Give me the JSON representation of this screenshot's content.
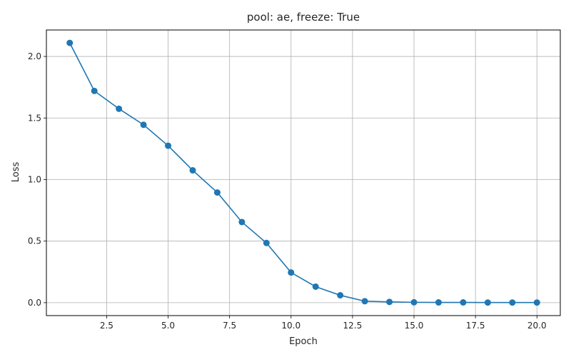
{
  "chart_data": {
    "type": "line",
    "title": "pool: ae, freeze: True",
    "xlabel": "Epoch",
    "ylabel": "Loss",
    "xlim": [
      0.05,
      20.95
    ],
    "ylim": [
      -0.105,
      2.215
    ],
    "xticks": [
      2.5,
      5.0,
      7.5,
      10.0,
      12.5,
      15.0,
      17.5,
      20.0
    ],
    "xtick_labels": [
      "2.5",
      "5.0",
      "7.5",
      "10.0",
      "12.5",
      "15.0",
      "17.5",
      "20.0"
    ],
    "yticks": [
      0.0,
      0.5,
      1.0,
      1.5,
      2.0
    ],
    "ytick_labels": [
      "0.0",
      "0.5",
      "1.0",
      "1.5",
      "2.0"
    ],
    "grid": true,
    "line_color": "#1f77b4",
    "series": [
      {
        "x": [
          1,
          2,
          3,
          4,
          5,
          6,
          7,
          8,
          9,
          10,
          11,
          12,
          13,
          14,
          15,
          16,
          17,
          18,
          19,
          20
        ],
        "y": [
          2.11,
          1.72,
          1.575,
          1.445,
          1.275,
          1.075,
          0.895,
          0.655,
          0.485,
          0.245,
          0.13,
          0.06,
          0.012,
          0.006,
          0.003,
          0.002,
          0.002,
          0.001,
          0.001,
          0.001
        ]
      }
    ]
  }
}
